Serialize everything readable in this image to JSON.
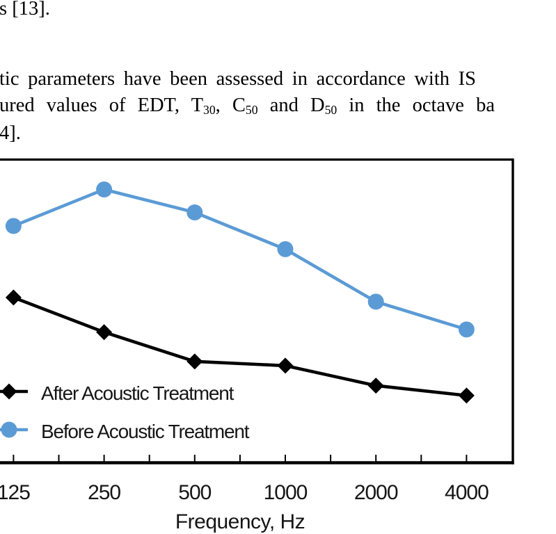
{
  "document": {
    "line1": "s [13].",
    "line2": "tic parameters have been assessed in accordance with IS",
    "line3_segments": [
      {
        "text": "ured values of EDT, T"
      },
      {
        "text": "30",
        "sub": true
      },
      {
        "text": ", C"
      },
      {
        "text": "50",
        "sub": true
      },
      {
        "text": " and D"
      },
      {
        "text": "50",
        "sub": true
      },
      {
        "text": " in the octave ba"
      }
    ],
    "line4": "4]."
  },
  "chart_data": {
    "type": "line",
    "title": "",
    "xlabel": "Frequency, Hz",
    "ylabel": "",
    "categories": [
      125,
      250,
      500,
      1000,
      2000,
      4000
    ],
    "x_tick_labels": [
      "125",
      "250",
      "500",
      "1000",
      "2000",
      "4000"
    ],
    "grid": false,
    "legend_position": "inside-lower-left",
    "y_axis_note": "y-axis and left plot edge are cropped out of the screenshot; series values are given as fractions of the visible plot height (0 = x-axis, 1 = top border)",
    "series": [
      {
        "name": "After Acoustic Treatment",
        "color": "#000000",
        "marker": "diamond",
        "values_frac": [
          0.543,
          0.428,
          0.331,
          0.317,
          0.251,
          0.218
        ]
      },
      {
        "name": "Before Acoustic Treatment",
        "color": "#5B9BD5",
        "marker": "circle",
        "values_frac": [
          0.78,
          0.901,
          0.825,
          0.703,
          0.529,
          0.437
        ]
      }
    ]
  }
}
